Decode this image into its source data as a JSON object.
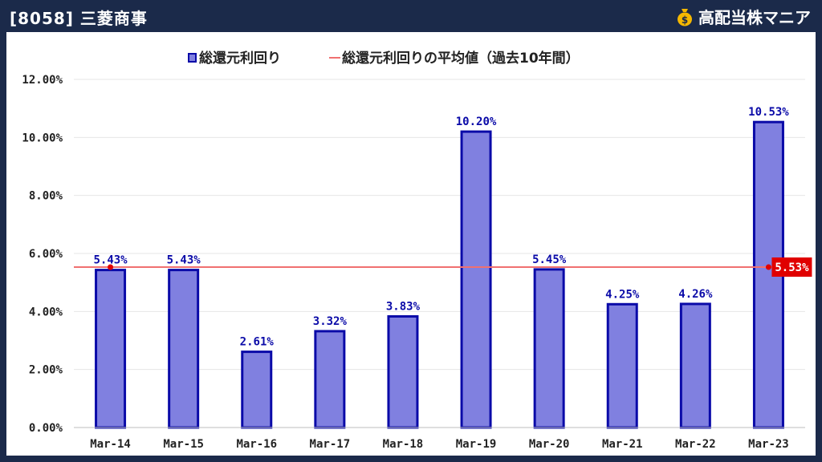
{
  "header": {
    "title": "[8058] 三菱商事",
    "brand": "高配当株マニア",
    "brand_icon": "money-bag-icon"
  },
  "colors": {
    "header_bg": "#1b2a4a",
    "bar_fill": "#8080e0",
    "bar_stroke": "#0a0aa8",
    "avg_line": "#f07070",
    "avg_badge": "#e00000",
    "label_text": "#0a0aa8"
  },
  "chart_data": {
    "type": "bar",
    "title": "",
    "xlabel": "",
    "ylabel": "",
    "categories": [
      "Mar-14",
      "Mar-15",
      "Mar-16",
      "Mar-17",
      "Mar-18",
      "Mar-19",
      "Mar-20",
      "Mar-21",
      "Mar-22",
      "Mar-23"
    ],
    "series": [
      {
        "name": "総還元利回り",
        "values": [
          5.43,
          5.43,
          2.61,
          3.32,
          3.83,
          10.2,
          5.45,
          4.25,
          4.26,
          10.53
        ],
        "data_labels": [
          "5.43%",
          "5.43%",
          "2.61%",
          "3.32%",
          "3.83%",
          "10.20%",
          "5.45%",
          "4.25%",
          "4.26%",
          "10.53%"
        ]
      }
    ],
    "average_line": {
      "name": "総還元利回りの平均値（過去10年間）",
      "value": 5.53,
      "label": "5.53%"
    },
    "ylim": [
      0,
      12
    ],
    "yticks": [
      "0.00%",
      "2.00%",
      "4.00%",
      "6.00%",
      "8.00%",
      "10.00%",
      "12.00%"
    ],
    "grid": true,
    "legend": "top-center"
  }
}
